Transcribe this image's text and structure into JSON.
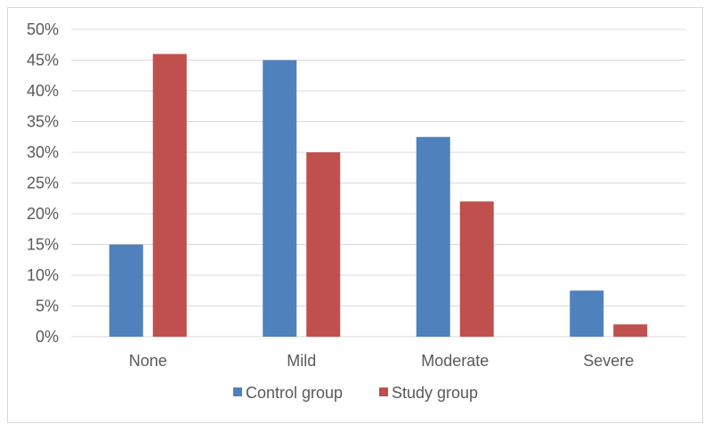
{
  "chart_data": {
    "type": "bar",
    "categories": [
      "None",
      "Mild",
      "Moderate",
      "Severe"
    ],
    "series": [
      {
        "name": "Control group",
        "color": "#4f81bd",
        "values": [
          15,
          45,
          32.5,
          7.5
        ]
      },
      {
        "name": "Study group",
        "color": "#c0504d",
        "values": [
          46,
          30,
          22,
          2
        ]
      }
    ],
    "yticks": [
      "0%",
      "5%",
      "10%",
      "15%",
      "20%",
      "25%",
      "30%",
      "35%",
      "40%",
      "45%",
      "50%"
    ],
    "ylim": [
      0,
      50
    ],
    "y_unit": "%",
    "grid": true,
    "legend_position": "bottom",
    "title": "",
    "xlabel": "",
    "ylabel": ""
  }
}
